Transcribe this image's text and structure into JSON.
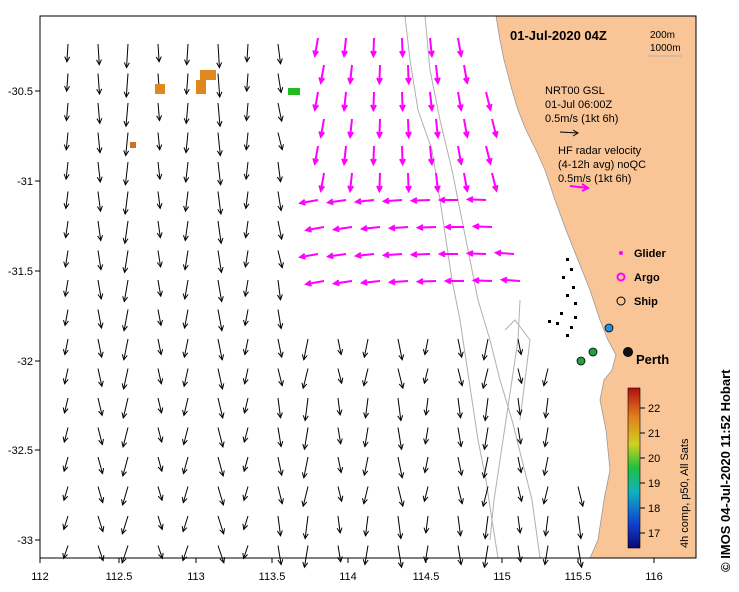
{
  "map": {
    "date_label": "01-Jul-2020 04Z",
    "depth_contours": [
      "200m",
      "1000m"
    ],
    "lon_ticks": [
      "112",
      "112.5",
      "113",
      "113.5",
      "114",
      "114.5",
      "115",
      "115.5",
      "116"
    ],
    "lat_ticks": [
      "-30.5",
      "-31",
      "-31.5",
      "-32",
      "-32.5",
      "-33"
    ],
    "city_label": "Perth"
  },
  "legend": {
    "gsl": {
      "line1": "NRT00 GSL",
      "line2": "01-Jul 06:00Z",
      "line3": "0.5m/s (1kt 6h)"
    },
    "hf": {
      "line1": "HF radar velocity",
      "line2": "(4-12h avg) noQC",
      "line3": "0.5m/s (1kt 6h)"
    },
    "glider_label": "Glider",
    "argo_label": "Argo",
    "ship_label": "Ship"
  },
  "colorbar": {
    "ticks": [
      "22",
      "21",
      "20",
      "19",
      "18",
      "17"
    ],
    "caption": "4h comp, p50, All Sats"
  },
  "credit": "© IMOS 04-Jul-2020 11:52 Hobart",
  "colors": {
    "land": "#f9c596",
    "hf": "#ff00ff",
    "arrow": "#000000",
    "coast_gray": "#b0b0b0"
  }
}
